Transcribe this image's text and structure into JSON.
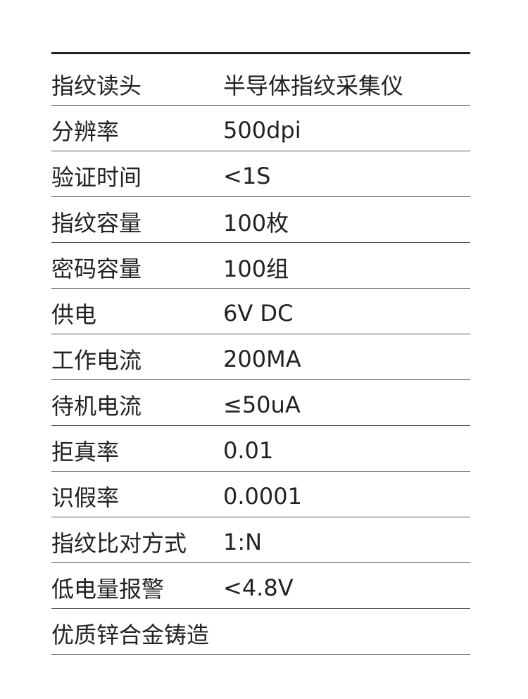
{
  "rows": [
    {
      "label": "指纹读头",
      "value": "半导体指纹采集仪"
    },
    {
      "label": "分辨率",
      "value": "500dpi"
    },
    {
      "label": "验证时间",
      "value": "<1S"
    },
    {
      "label": "指纹容量",
      "value": "100枚"
    },
    {
      "label": "密码容量",
      "value": "100组"
    },
    {
      "label": "供电",
      "value": "6V DC"
    },
    {
      "label": "工作电流",
      "value": "200MA"
    },
    {
      "label": "待机电流",
      "value": "≤50uA"
    },
    {
      "label": "拒真率",
      "value": "0.01"
    },
    {
      "label": "识假率",
      "value": "0.0001"
    },
    {
      "label": "指纹比对方式",
      "value": "1:N"
    },
    {
      "label": "低电量报警",
      "value": "<4.8V"
    },
    {
      "label": "优质锌合金铸造",
      "value": ""
    }
  ]
}
